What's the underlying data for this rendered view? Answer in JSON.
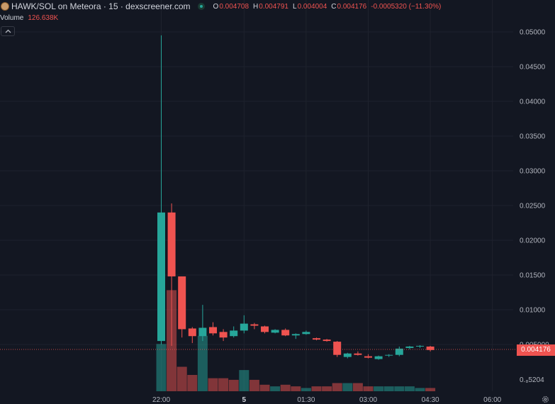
{
  "header": {
    "symbol_line": "HAWK/SOL on Meteora · 15 · dexscreener.com",
    "ohlc": [
      {
        "k": "O",
        "v": "0.004708"
      },
      {
        "k": "H",
        "v": "0.004791"
      },
      {
        "k": "L",
        "v": "0.004004"
      },
      {
        "k": "C",
        "v": "0.004176"
      }
    ],
    "change": "-0.0005320 (−11.30%)"
  },
  "volume": {
    "label": "Volume",
    "value": "126.638K"
  },
  "collapse_icon": "chevron-up-icon",
  "settings_icon": "gear-icon",
  "last_price": "0.004176",
  "colors": {
    "up": "#26a69a",
    "down": "#ef5350",
    "background": "#131722",
    "grid": "#1e222d"
  },
  "chart_data": {
    "type": "candlestick",
    "price_ticks": [
      "0.05000",
      "0.04500",
      "0.04000",
      "0.03500",
      "0.03000",
      "0.02500",
      "0.02000",
      "0.01500",
      "0.01000",
      "0.005000"
    ],
    "extra_tick_label": "0.₈5204",
    "ylim": [
      0,
      0.05
    ],
    "time_ticks": [
      {
        "label": "22:00",
        "bar": 0.5,
        "bold": false
      },
      {
        "label": "5",
        "bar": 8.5,
        "bold": true
      },
      {
        "label": "01:30",
        "bar": 14.5,
        "bold": false
      },
      {
        "label": "03:00",
        "bar": 20.5,
        "bold": false
      },
      {
        "label": "04:30",
        "bar": 26.5,
        "bold": false
      },
      {
        "label": "06:00",
        "bar": 32.5,
        "bold": false
      }
    ],
    "candles": [
      {
        "o": 0.0055,
        "h": 0.0495,
        "l": 0.005,
        "c": 0.024
      },
      {
        "o": 0.024,
        "h": 0.0253,
        "l": 0.0048,
        "c": 0.0148
      },
      {
        "o": 0.0148,
        "h": 0.0148,
        "l": 0.006,
        "c": 0.0072
      },
      {
        "o": 0.0073,
        "h": 0.0075,
        "l": 0.0052,
        "c": 0.0062
      },
      {
        "o": 0.0062,
        "h": 0.0107,
        "l": 0.0055,
        "c": 0.0074
      },
      {
        "o": 0.0075,
        "h": 0.0082,
        "l": 0.0063,
        "c": 0.0066
      },
      {
        "o": 0.0068,
        "h": 0.0072,
        "l": 0.0055,
        "c": 0.006
      },
      {
        "o": 0.0062,
        "h": 0.0076,
        "l": 0.006,
        "c": 0.007
      },
      {
        "o": 0.007,
        "h": 0.0092,
        "l": 0.0066,
        "c": 0.008
      },
      {
        "o": 0.0079,
        "h": 0.0081,
        "l": 0.0072,
        "c": 0.0077
      },
      {
        "o": 0.0076,
        "h": 0.0077,
        "l": 0.0066,
        "c": 0.0068
      },
      {
        "o": 0.0067,
        "h": 0.0072,
        "l": 0.0066,
        "c": 0.0071
      },
      {
        "o": 0.0071,
        "h": 0.0073,
        "l": 0.0062,
        "c": 0.0063
      },
      {
        "o": 0.0063,
        "h": 0.0066,
        "l": 0.0058,
        "c": 0.0065
      },
      {
        "o": 0.0065,
        "h": 0.007,
        "l": 0.0064,
        "c": 0.0068
      },
      {
        "o": 0.0059,
        "h": 0.006,
        "l": 0.0056,
        "c": 0.0057
      },
      {
        "o": 0.0057,
        "h": 0.0058,
        "l": 0.0054,
        "c": 0.0055
      },
      {
        "o": 0.0054,
        "h": 0.0055,
        "l": 0.0032,
        "c": 0.0035
      },
      {
        "o": 0.0032,
        "h": 0.0038,
        "l": 0.003,
        "c": 0.0037
      },
      {
        "o": 0.0037,
        "h": 0.004,
        "l": 0.0034,
        "c": 0.0035
      },
      {
        "o": 0.0033,
        "h": 0.0036,
        "l": 0.003,
        "c": 0.0031
      },
      {
        "o": 0.0029,
        "h": 0.0034,
        "l": 0.0028,
        "c": 0.0033
      },
      {
        "o": 0.0034,
        "h": 0.0036,
        "l": 0.0032,
        "c": 0.0035
      },
      {
        "o": 0.0035,
        "h": 0.0047,
        "l": 0.0033,
        "c": 0.0044
      },
      {
        "o": 0.0045,
        "h": 0.0048,
        "l": 0.0043,
        "c": 0.0047
      },
      {
        "o": 0.0047,
        "h": 0.0049,
        "l": 0.0045,
        "c": 0.0048
      },
      {
        "o": 0.0047,
        "h": 0.0048,
        "l": 0.004,
        "c": 0.0042
      }
    ],
    "volume_series": [
      {
        "up": true,
        "v": 0.29
      },
      {
        "up": false,
        "v": 0.62
      },
      {
        "up": false,
        "v": 0.15
      },
      {
        "up": false,
        "v": 0.1
      },
      {
        "up": true,
        "v": 0.34
      },
      {
        "up": false,
        "v": 0.08
      },
      {
        "up": false,
        "v": 0.08
      },
      {
        "up": false,
        "v": 0.07
      },
      {
        "up": true,
        "v": 0.13
      },
      {
        "up": false,
        "v": 0.07
      },
      {
        "up": false,
        "v": 0.04
      },
      {
        "up": true,
        "v": 0.03
      },
      {
        "up": false,
        "v": 0.04
      },
      {
        "up": false,
        "v": 0.03
      },
      {
        "up": true,
        "v": 0.02
      },
      {
        "up": false,
        "v": 0.03
      },
      {
        "up": false,
        "v": 0.03
      },
      {
        "up": false,
        "v": 0.05
      },
      {
        "up": true,
        "v": 0.05
      },
      {
        "up": false,
        "v": 0.05
      },
      {
        "up": false,
        "v": 0.03
      },
      {
        "up": true,
        "v": 0.03
      },
      {
        "up": true,
        "v": 0.03
      },
      {
        "up": true,
        "v": 0.03
      },
      {
        "up": true,
        "v": 0.03
      },
      {
        "up": true,
        "v": 0.02
      },
      {
        "up": false,
        "v": 0.02
      }
    ]
  }
}
